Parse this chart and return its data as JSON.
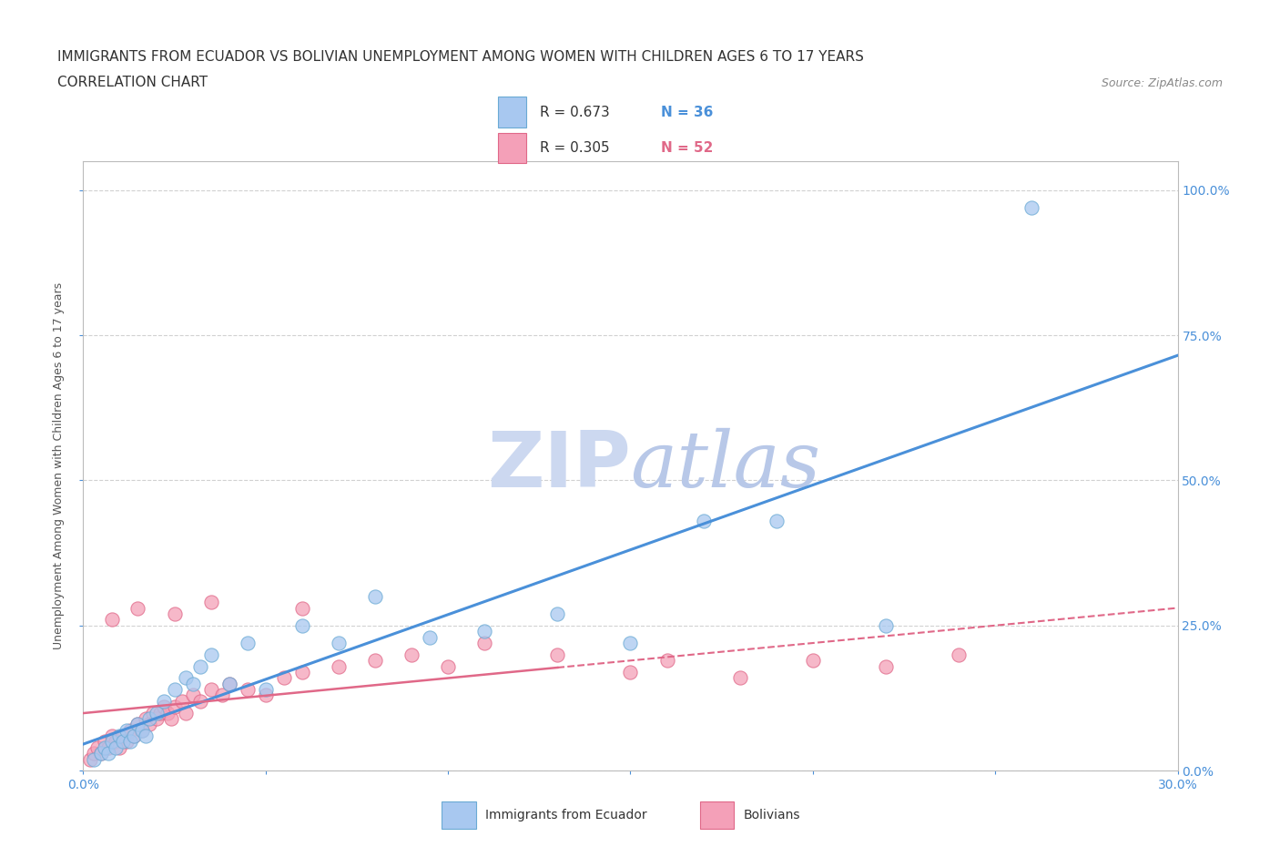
{
  "title_line1": "IMMIGRANTS FROM ECUADOR VS BOLIVIAN UNEMPLOYMENT AMONG WOMEN WITH CHILDREN AGES 6 TO 17 YEARS",
  "title_line2": "CORRELATION CHART",
  "source_text": "Source: ZipAtlas.com",
  "ylabel": "Unemployment Among Women with Children Ages 6 to 17 years",
  "xlim": [
    0.0,
    0.3
  ],
  "ylim": [
    0.0,
    1.05
  ],
  "xticks": [
    0.0,
    0.05,
    0.1,
    0.15,
    0.2,
    0.25,
    0.3
  ],
  "yticks": [
    0.0,
    0.25,
    0.5,
    0.75,
    1.0
  ],
  "ytick_labels": [
    "0.0%",
    "25.0%",
    "50.0%",
    "75.0%",
    "100.0%"
  ],
  "ecuador_color": "#a8c8f0",
  "ecuador_edge": "#6aaad4",
  "bolivia_color": "#f4a0b8",
  "bolivia_edge": "#e06888",
  "ecuador_line_color": "#4a90d9",
  "bolivia_line_color": "#e06888",
  "bolivia_line_solid_color": "#e06888",
  "grid_color": "#cccccc",
  "watermark_color": "#ccd8f0",
  "legend_r1_text": "R = 0.673",
  "legend_n1_text": "N = 36",
  "legend_r2_text": "R = 0.305",
  "legend_n2_text": "N = 52",
  "ecuador_scatter_x": [
    0.003,
    0.005,
    0.006,
    0.007,
    0.008,
    0.009,
    0.01,
    0.011,
    0.012,
    0.013,
    0.014,
    0.015,
    0.016,
    0.017,
    0.018,
    0.02,
    0.022,
    0.025,
    0.028,
    0.03,
    0.032,
    0.035,
    0.04,
    0.045,
    0.05,
    0.06,
    0.07,
    0.08,
    0.095,
    0.11,
    0.13,
    0.15,
    0.17,
    0.19,
    0.22,
    0.26
  ],
  "ecuador_scatter_y": [
    0.02,
    0.03,
    0.04,
    0.03,
    0.05,
    0.04,
    0.06,
    0.05,
    0.07,
    0.05,
    0.06,
    0.08,
    0.07,
    0.06,
    0.09,
    0.1,
    0.12,
    0.14,
    0.16,
    0.15,
    0.18,
    0.2,
    0.15,
    0.22,
    0.14,
    0.25,
    0.22,
    0.3,
    0.23,
    0.24,
    0.27,
    0.22,
    0.43,
    0.43,
    0.25,
    0.97
  ],
  "bolivia_scatter_x": [
    0.002,
    0.003,
    0.004,
    0.005,
    0.006,
    0.007,
    0.008,
    0.009,
    0.01,
    0.011,
    0.012,
    0.013,
    0.014,
    0.015,
    0.016,
    0.017,
    0.018,
    0.019,
    0.02,
    0.021,
    0.022,
    0.023,
    0.024,
    0.025,
    0.027,
    0.028,
    0.03,
    0.032,
    0.035,
    0.038,
    0.04,
    0.045,
    0.05,
    0.055,
    0.06,
    0.07,
    0.08,
    0.09,
    0.1,
    0.11,
    0.13,
    0.15,
    0.16,
    0.18,
    0.2,
    0.22,
    0.24,
    0.06,
    0.035,
    0.025,
    0.015,
    0.008
  ],
  "bolivia_scatter_y": [
    0.02,
    0.03,
    0.04,
    0.03,
    0.05,
    0.04,
    0.06,
    0.05,
    0.04,
    0.06,
    0.05,
    0.07,
    0.06,
    0.08,
    0.07,
    0.09,
    0.08,
    0.1,
    0.09,
    0.1,
    0.11,
    0.1,
    0.09,
    0.11,
    0.12,
    0.1,
    0.13,
    0.12,
    0.14,
    0.13,
    0.15,
    0.14,
    0.13,
    0.16,
    0.17,
    0.18,
    0.19,
    0.2,
    0.18,
    0.22,
    0.2,
    0.17,
    0.19,
    0.16,
    0.19,
    0.18,
    0.2,
    0.28,
    0.29,
    0.27,
    0.28,
    0.26
  ],
  "title_fontsize": 11,
  "subtitle_fontsize": 11,
  "source_fontsize": 9,
  "axis_label_fontsize": 9,
  "tick_fontsize": 10
}
